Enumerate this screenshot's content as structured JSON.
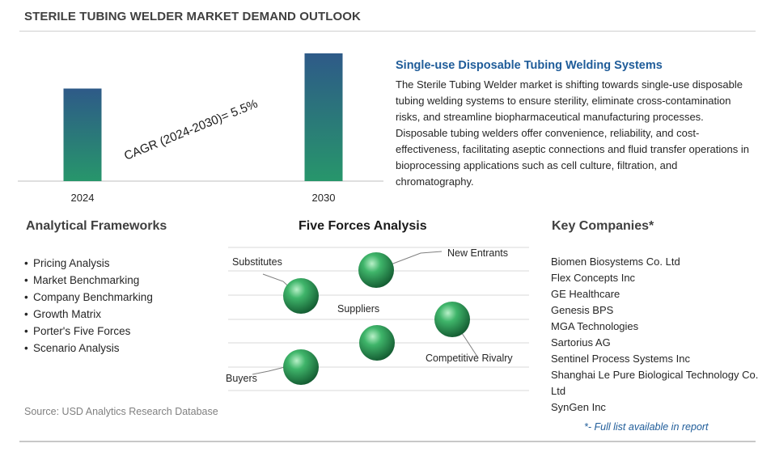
{
  "title": "STERILE TUBING WELDER MARKET DEMAND OUTLOOK",
  "chart_data": {
    "type": "bar",
    "categories": [
      "2024",
      "2030"
    ],
    "values": [
      1.0,
      1.38
    ],
    "cagr_label": "CAGR (2024-2030)=  5.5%",
    "bar_colors": [
      "#2e5a88",
      "#27966b"
    ]
  },
  "feature": {
    "title": "Single-use Disposable Tubing Welding Systems",
    "text": "The Sterile Tubing Welder market is shifting towards single-use disposable tubing welding systems to ensure sterility, eliminate cross-contamination risks, and streamline biopharmaceutical manufacturing processes. Disposable tubing welders offer convenience, reliability, and cost-effectiveness, facilitating aseptic connections and fluid transfer operations in bioprocessing applications such as cell culture, filtration, and chromatography."
  },
  "frameworks": {
    "heading": "Analytical Frameworks",
    "items": [
      "Pricing Analysis",
      "Market Benchmarking",
      "Company Benchmarking",
      "Growth Matrix",
      "Porter's Five Forces",
      "Scenario Analysis"
    ]
  },
  "five_forces": {
    "heading": "Five Forces Analysis",
    "labels": {
      "substitutes": "Substitutes",
      "new_entrants": "New Entrants",
      "suppliers": "Suppliers",
      "competitive_rivalry": "Competitive Rivalry",
      "buyers": "Buyers"
    },
    "sphere_color": "#2e9a58"
  },
  "companies": {
    "heading": "Key Companies*",
    "items": [
      "Biomen Biosystems Co. Ltd",
      "Flex Concepts Inc",
      "GE Healthcare",
      "Genesis BPS",
      "MGA Technologies",
      "Sartorius AG",
      "Sentinel Process Systems Inc",
      "Shanghai Le Pure Biological Technology Co. Ltd",
      "SynGen Inc"
    ],
    "note": "*- Full list available in report"
  },
  "source": "Source: USD Analytics Research Database"
}
